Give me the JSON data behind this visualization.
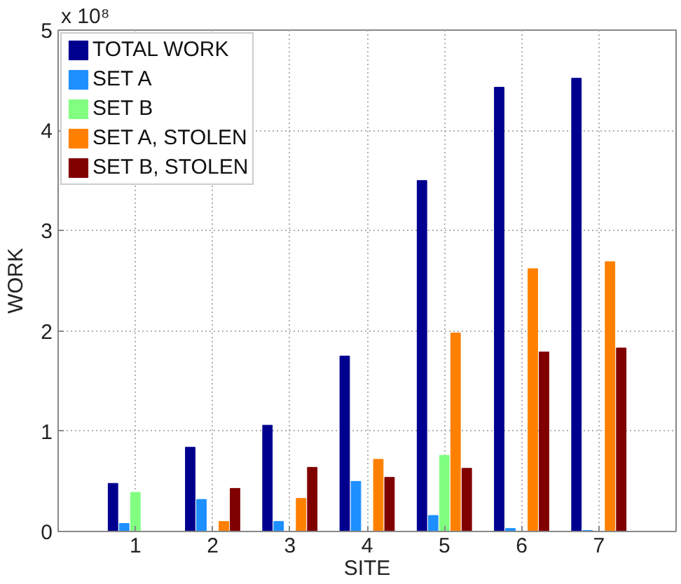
{
  "chart_data": {
    "type": "bar",
    "xlabel": "SITE",
    "ylabel": "WORK",
    "annotations": [
      "x 10⁸"
    ],
    "categories": [
      "1",
      "2",
      "3",
      "4",
      "5",
      "6",
      "7"
    ],
    "ylim": [
      0,
      5
    ],
    "yticks": [
      0,
      1,
      2,
      3,
      4,
      5
    ],
    "grid": true,
    "legend": "top left",
    "series": [
      {
        "name": "TOTAL WORK",
        "color": "#00008f",
        "values": [
          0.48,
          0.84,
          1.06,
          1.75,
          3.5,
          4.43,
          4.52
        ]
      },
      {
        "name": "SET A",
        "color": "#1e8fff",
        "values": [
          0.08,
          0.32,
          0.1,
          0.5,
          0.16,
          0.03,
          0.01
        ]
      },
      {
        "name": "SET B",
        "color": "#80ff80",
        "values": [
          0.39,
          0,
          0,
          0,
          0.76,
          0,
          0
        ]
      },
      {
        "name": "SET A, STOLEN",
        "color": "#ff8000",
        "values": [
          0,
          0.1,
          0.33,
          0.72,
          1.98,
          2.62,
          2.69
        ]
      },
      {
        "name": "SET B, STOLEN",
        "color": "#800000",
        "values": [
          0,
          0.43,
          0.64,
          0.54,
          0.63,
          1.79,
          1.83
        ]
      }
    ]
  }
}
